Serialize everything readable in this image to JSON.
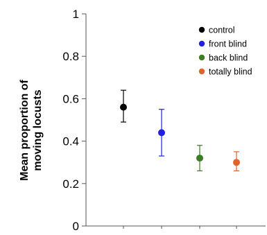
{
  "chart_data": {
    "type": "scatter",
    "title": "",
    "xlabel": "",
    "ylabel_lines": [
      "Mean proportion of",
      "moving locusts"
    ],
    "ylim": [
      0,
      1
    ],
    "y_ticks": [
      "0",
      "0.2",
      "0.4",
      "0.6",
      "0.8",
      "1"
    ],
    "grid": false,
    "legend_position": "top-right",
    "series": [
      {
        "name": "control",
        "color": "#000000",
        "value": 0.56,
        "err_low": 0.49,
        "err_high": 0.64
      },
      {
        "name": "front blind",
        "color": "#2020e0",
        "value": 0.44,
        "err_low": 0.33,
        "err_high": 0.55
      },
      {
        "name": "back blind",
        "color": "#3a7d22",
        "value": 0.32,
        "err_low": 0.26,
        "err_high": 0.38
      },
      {
        "name": "totally blind",
        "color": "#e0642a",
        "value": 0.3,
        "err_low": 0.26,
        "err_high": 0.35
      }
    ]
  }
}
